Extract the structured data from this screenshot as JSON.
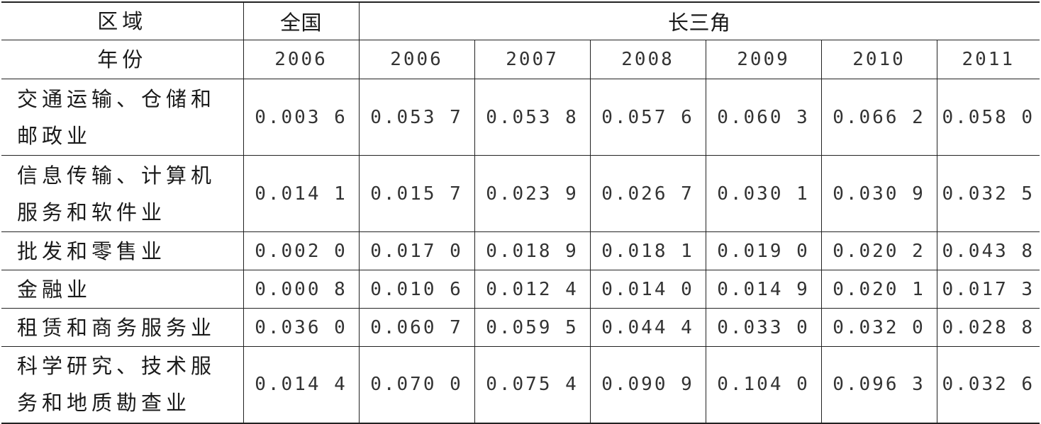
{
  "header": {
    "region_label": "区域",
    "national_label": "全国",
    "yrd_label": "长三角",
    "year_label": "年份",
    "years": [
      "2006",
      "2006",
      "2007",
      "2008",
      "2009",
      "2010",
      "2011"
    ]
  },
  "rows": [
    {
      "label": "交通运输、仓储和邮政业",
      "values": [
        "0.003 6",
        "0.053 7",
        "0.053 8",
        "0.057 6",
        "0.060 3",
        "0.066 2",
        "0.058 0"
      ]
    },
    {
      "label": "信息传输、计算机服务和软件业",
      "values": [
        "0.014 1",
        "0.015 7",
        "0.023 9",
        "0.026 7",
        "0.030 1",
        "0.030 9",
        "0.032 5"
      ]
    },
    {
      "label": "批发和零售业",
      "values": [
        "0.002 0",
        "0.017 0",
        "0.018 9",
        "0.018 1",
        "0.019 0",
        "0.020 2",
        "0.043 8"
      ]
    },
    {
      "label": "金融业",
      "values": [
        "0.000 8",
        "0.010 6",
        "0.012 4",
        "0.014 0",
        "0.014 9",
        "0.020 1",
        "0.017 3"
      ]
    },
    {
      "label": "租赁和商务服务业",
      "values": [
        "0.036 0",
        "0.060 7",
        "0.059 5",
        "0.044 4",
        "0.033 0",
        "0.032 0",
        "0.028 8"
      ]
    },
    {
      "label": "科学研究、技术服务和地质勘查业",
      "values": [
        "0.014 4",
        "0.070 0",
        "0.075 4",
        "0.090 9",
        "0.104 0",
        "0.096 3",
        "0.032 6"
      ]
    }
  ]
}
